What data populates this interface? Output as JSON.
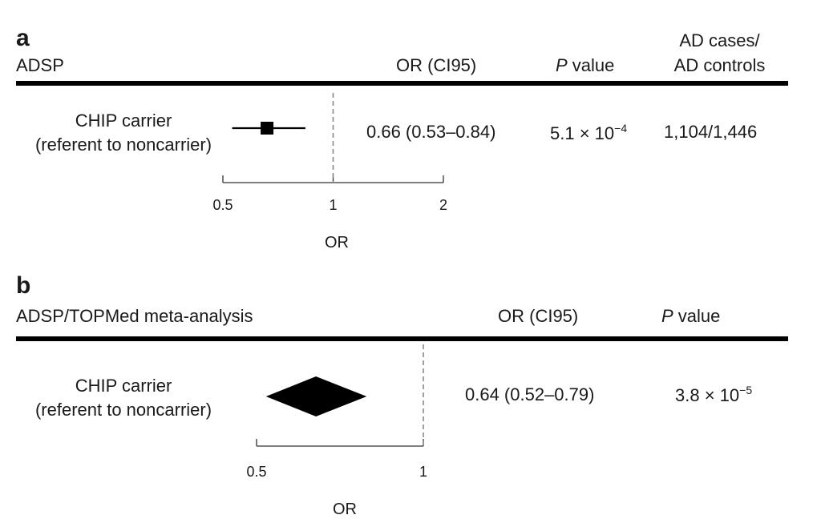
{
  "panels": [
    {
      "letter": "a",
      "title": "ADSP",
      "col_or": "OR (CI95)",
      "col_p_italic": "P",
      "col_p_rest": " value",
      "col_cases_line1": "AD cases/",
      "col_cases_line2": "AD controls",
      "row_label_line1": "CHIP carrier",
      "row_label_line2": "(referent to noncarrier)",
      "or_text": "0.66 (0.53–0.84)",
      "p_base": "5.1 × 10",
      "p_exp": "−4",
      "cases": "1,104/1,446",
      "axis_label": "OR"
    },
    {
      "letter": "b",
      "title": "ADSP/TOPMed meta-analysis",
      "col_or": "OR (CI95)",
      "col_p_italic": "P",
      "col_p_rest": " value",
      "row_label_line1": "CHIP carrier",
      "row_label_line2": "(referent to noncarrier)",
      "or_text": "0.64 (0.52–0.79)",
      "p_base": "3.8 × 10",
      "p_exp": "−5",
      "axis_label": "OR"
    }
  ],
  "chart_data": [
    {
      "type": "forest",
      "panel": "a",
      "marker": "square",
      "scale": "log",
      "xlabel": "OR",
      "x_ticks": [
        0.5,
        1,
        2
      ],
      "x_tick_labels": [
        "0.5",
        "1",
        "2"
      ],
      "xlim": [
        0.5,
        2
      ],
      "reference_line": 1,
      "points": [
        {
          "label": "CHIP carrier (referent to noncarrier)",
          "or": 0.66,
          "ci_low": 0.53,
          "ci_high": 0.84
        }
      ]
    },
    {
      "type": "forest",
      "panel": "b",
      "marker": "diamond",
      "scale": "log",
      "xlabel": "OR",
      "x_ticks": [
        0.5,
        1
      ],
      "x_tick_labels": [
        "0.5",
        "1"
      ],
      "xlim": [
        0.5,
        1
      ],
      "reference_line": 1,
      "points": [
        {
          "label": "CHIP carrier (referent to noncarrier)",
          "or": 0.64,
          "ci_low": 0.52,
          "ci_high": 0.79
        }
      ]
    }
  ]
}
